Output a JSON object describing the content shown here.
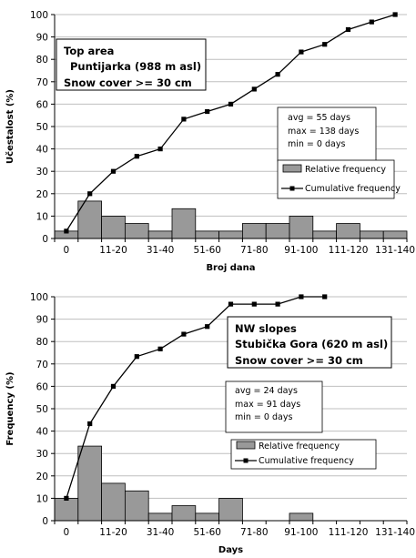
{
  "chart_data": [
    {
      "type": "bar",
      "combined_with": "line",
      "x_tick_labels": [
        "0",
        "11-20",
        "31-40",
        "51-60",
        "71-80",
        "91-100",
        "111-120",
        "131-140"
      ],
      "categories": [
        "0",
        "1-10",
        "11-20",
        "21-30",
        "31-40",
        "41-50",
        "51-60",
        "61-70",
        "71-80",
        "81-90",
        "91-100",
        "101-110",
        "111-120",
        "121-130",
        "131-140"
      ],
      "ylabel": "Učestalost (%)",
      "xlabel": "Broj dana",
      "ylim": [
        0,
        100
      ],
      "yticks": [
        "0",
        "10",
        "20",
        "30",
        "40",
        "50",
        "60",
        "70",
        "80",
        "90",
        "100"
      ],
      "grid": "horizontal",
      "annotation_title": [
        "Top area",
        "Puntijarka (988 m asl)",
        "Snow cover >= 30 cm"
      ],
      "stats": [
        "avg = 55 days",
        "max = 138 days",
        "min = 0 days"
      ],
      "legend": [
        "Relative frequency",
        "Cumulative frequency"
      ],
      "legend_position": "right",
      "bar_color": "#999999",
      "series": [
        {
          "name": "Relative frequency",
          "values": [
            3.3,
            16.7,
            10,
            6.7,
            3.3,
            13.3,
            3.3,
            3.3,
            6.7,
            6.7,
            10,
            3.3,
            6.7,
            3.3,
            3.3
          ]
        },
        {
          "name": "Cumulative frequency",
          "values": [
            3.3,
            20,
            30,
            36.7,
            40,
            53.3,
            56.7,
            60,
            66.7,
            73.3,
            83.3,
            86.7,
            93.3,
            96.7,
            100
          ]
        }
      ]
    },
    {
      "type": "bar",
      "combined_with": "line",
      "x_tick_labels": [
        "0",
        "11-20",
        "31-40",
        "51-60",
        "71-80",
        "91-100",
        "111-120",
        "131-140"
      ],
      "categories": [
        "0",
        "1-10",
        "11-20",
        "21-30",
        "31-40",
        "41-50",
        "51-60",
        "61-70",
        "71-80",
        "81-90",
        "91-100",
        "101-110",
        "111-120",
        "121-130",
        "131-140"
      ],
      "ylabel": "Frequency (%)",
      "xlabel": "Days",
      "ylim": [
        0,
        100
      ],
      "yticks": [
        "0",
        "10",
        "20",
        "30",
        "40",
        "50",
        "60",
        "70",
        "80",
        "90",
        "100"
      ],
      "grid": "horizontal",
      "annotation_title": [
        "NW slopes",
        "Stubička Gora (620 m asl)",
        "Snow cover >= 30 cm"
      ],
      "stats": [
        "avg = 24 days",
        "max = 91 days",
        "min = 0 days"
      ],
      "legend": [
        "Relative frequency",
        "Cumulative frequency"
      ],
      "legend_position": "right",
      "bar_color": "#999999",
      "series": [
        {
          "name": "Relative frequency",
          "values": [
            10,
            33.3,
            16.7,
            13.3,
            3.3,
            6.7,
            3.3,
            10,
            0,
            0,
            3.3,
            0,
            0,
            0,
            0
          ]
        },
        {
          "name": "Cumulative frequency",
          "values": [
            10,
            43.3,
            60,
            73.3,
            76.7,
            83.3,
            86.7,
            96.7,
            96.7,
            96.7,
            100,
            100,
            null,
            null,
            null
          ]
        }
      ]
    }
  ]
}
